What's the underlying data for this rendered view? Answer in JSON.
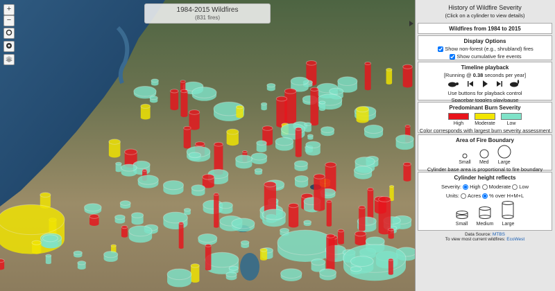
{
  "map_label": {
    "title": "1984-2015 Wildfires",
    "count": "(831 fires)"
  },
  "toolbar": {
    "zoom_in": "+",
    "zoom_out": "−"
  },
  "panel": {
    "title": "History of Wildfire Severity",
    "subtitle": "(Click on a cylinder to view details)",
    "date_range": "Wildfires from 1984 to 2015",
    "display_options": {
      "heading": "Display Options",
      "options": [
        {
          "label": "Show non-forest (e.g., shrubland) fires",
          "checked": true
        },
        {
          "label": "Show cumulative fire events",
          "checked": true
        }
      ]
    },
    "timeline": {
      "heading": "Timeline playback",
      "status_prefix": "[Running @ ",
      "speed": 0.38,
      "status_suffix": " seconds per year]",
      "notes": [
        "Use buttons for playback control",
        "Spacebar toggles play/pause"
      ]
    },
    "severity": {
      "heading": "Predominant Burn Severity",
      "items": [
        {
          "label": "High",
          "color": "#e8141c"
        },
        {
          "label": "Moderate",
          "color": "#f2e600"
        },
        {
          "label": "Low",
          "color": "#7fe3c8"
        }
      ],
      "note": "Color corresponds with largest burn severity assessment area"
    },
    "area": {
      "heading": "Area of Fire Boundary",
      "items": [
        "Small",
        "Med",
        "Large"
      ],
      "note": "Cylinder base area is proportional to fire boundary acreage"
    },
    "height": {
      "heading": "Cylinder height reflects",
      "severity": {
        "label": "Severity:",
        "options": [
          {
            "label": "High",
            "checked": true
          },
          {
            "label": "Moderate",
            "checked": false
          },
          {
            "label": "Low",
            "checked": false
          }
        ]
      },
      "units": {
        "label": "Units:",
        "options": [
          {
            "label": "Acres",
            "checked": false
          },
          {
            "label": "% over H+M+L",
            "checked": true
          }
        ]
      },
      "sizes": [
        "Small",
        "Medium",
        "Large"
      ]
    },
    "footer": {
      "source_prefix": "Data Source: ",
      "source_link": "MTBS",
      "current_prefix": "To view most current wildfires: ",
      "current_link": "EcoWest"
    }
  }
}
